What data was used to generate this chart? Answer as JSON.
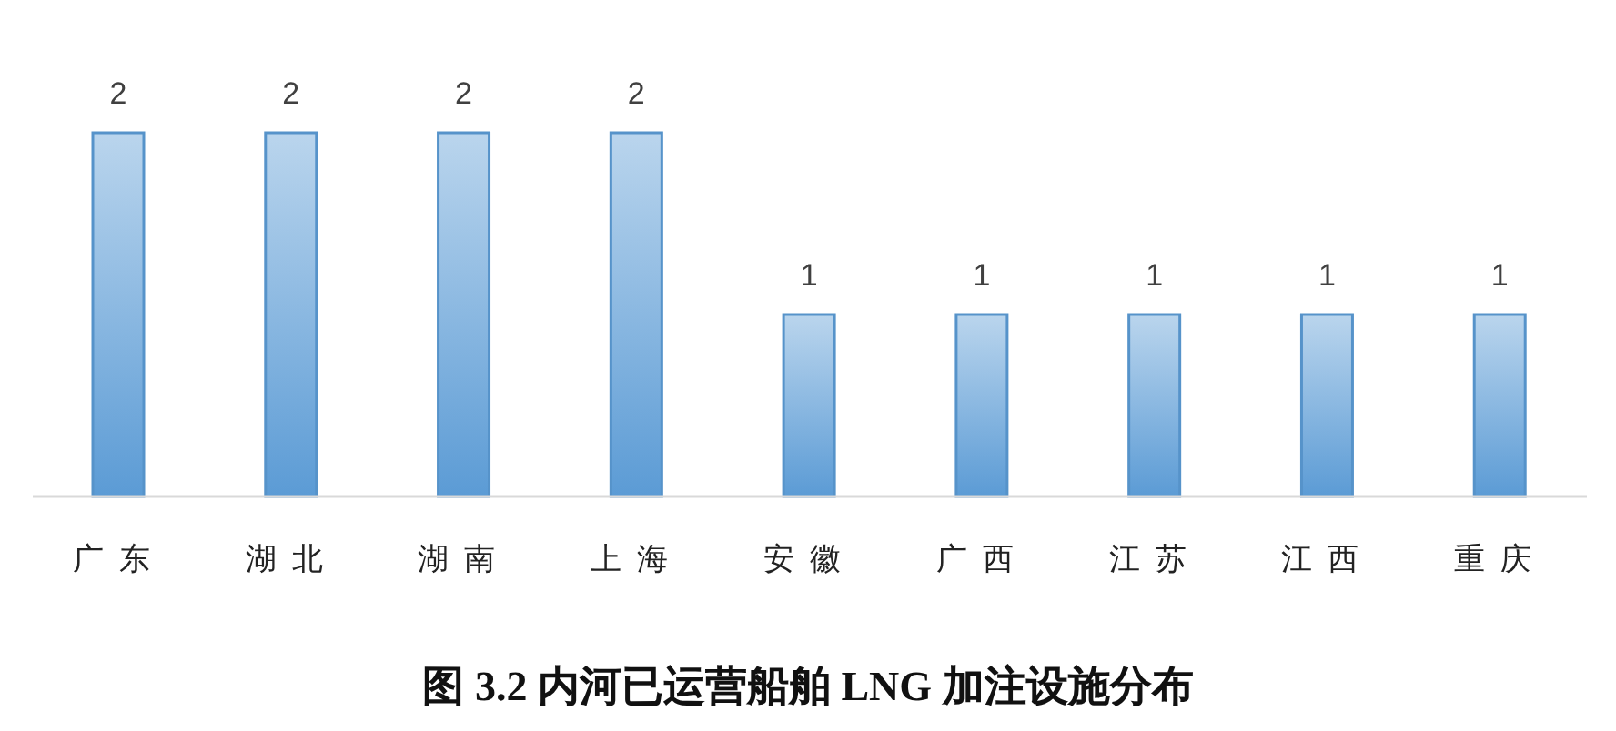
{
  "chart_data": {
    "type": "bar",
    "title": "图 3.2 内河已运营船舶 LNG 加注设施分布",
    "categories": [
      "广东",
      "湖北",
      "湖南",
      "上海",
      "安徽",
      "广西",
      "江苏",
      "江西",
      "重庆"
    ],
    "values": [
      2,
      2,
      2,
      2,
      1,
      1,
      1,
      1,
      1
    ],
    "color": "#5b9bd5",
    "data_labels": true,
    "grid": false,
    "legend": false
  }
}
